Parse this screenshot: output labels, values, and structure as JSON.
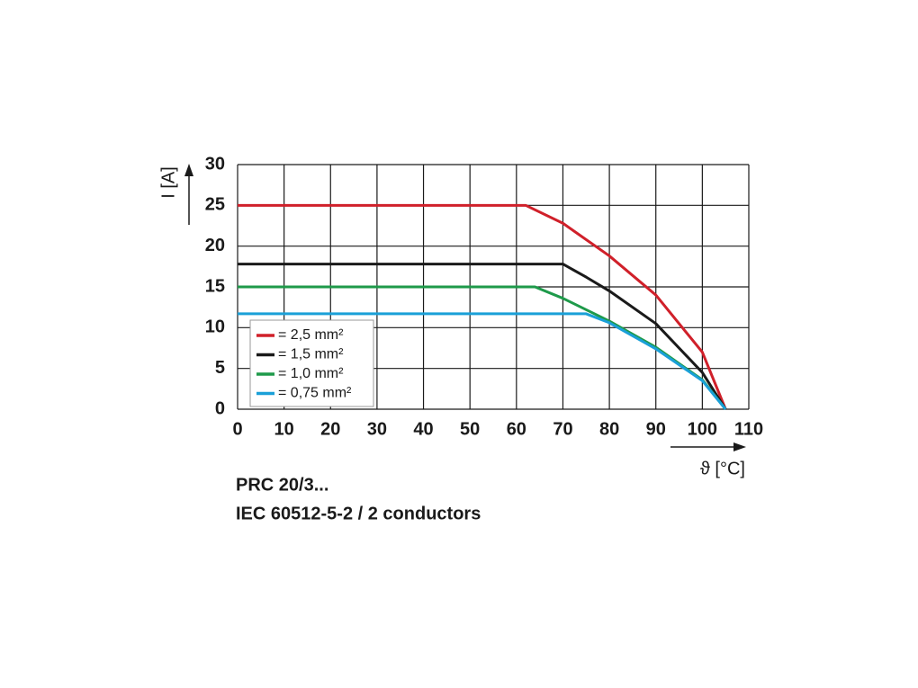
{
  "chart_data": {
    "type": "line",
    "x_label": "ϑ [°C]",
    "y_label": "I [A]",
    "xlim": [
      0,
      110
    ],
    "xticks": [
      0,
      10,
      20,
      30,
      40,
      50,
      60,
      70,
      80,
      90,
      100,
      110
    ],
    "ylim": [
      0,
      30
    ],
    "yticks": [
      0,
      5,
      10,
      15,
      20,
      25,
      30
    ],
    "grid": true,
    "legend": "lower left",
    "series": [
      {
        "name": "= 2,5 mm²",
        "color": "#d0202a",
        "x": [
          0,
          62,
          70,
          80,
          90,
          100,
          105
        ],
        "values": [
          25,
          25,
          22.8,
          18.8,
          14,
          7,
          0
        ]
      },
      {
        "name": "= 1,5 mm²",
        "color": "#1a1a1a",
        "x": [
          0,
          70,
          75,
          80,
          90,
          100,
          105
        ],
        "values": [
          17.8,
          17.8,
          16.2,
          14.5,
          10.5,
          4.5,
          0
        ]
      },
      {
        "name": "= 1,0 mm²",
        "color": "#1e9a4a",
        "x": [
          0,
          64,
          70,
          80,
          90,
          100,
          105
        ],
        "values": [
          15,
          15,
          13.6,
          10.8,
          7.6,
          3.6,
          0
        ]
      },
      {
        "name": "= 0,75 mm²",
        "color": "#1aa0d8",
        "x": [
          0,
          75,
          80,
          90,
          100,
          105
        ],
        "values": [
          11.7,
          11.7,
          10.6,
          7.4,
          3.5,
          0
        ]
      }
    ],
    "captions": [
      "PRC 20/3...",
      "IEC 60512-5-2 / 2 conductors"
    ]
  }
}
